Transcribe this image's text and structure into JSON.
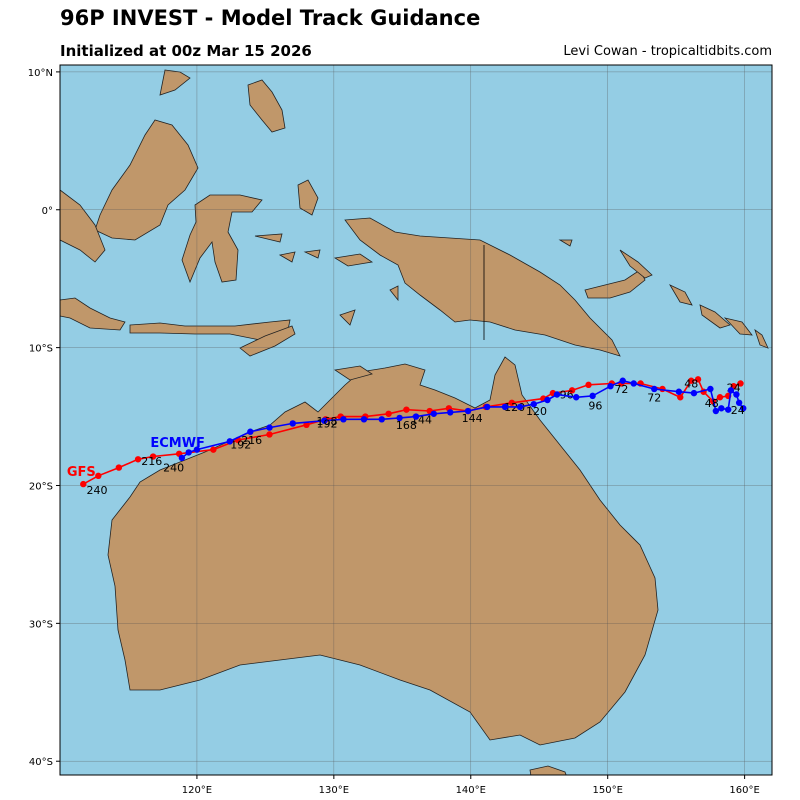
{
  "header": {
    "title": "96P INVEST - Model Track Guidance",
    "subtitle": "Initialized at 00z Mar 15 2026",
    "credit": "Levi Cowan - tropicaltidbits.com"
  },
  "colors": {
    "ocean": "#94cde4",
    "land": "#c0976a",
    "gfs": "#ff0000",
    "ecmwf": "#0000ff",
    "grid": "#555555"
  },
  "chart_data": {
    "type": "map-track",
    "xlim": [
      110,
      162
    ],
    "ylim": [
      -41,
      10.5
    ],
    "lon_ticks": [
      {
        "value": 120,
        "label": "120°E"
      },
      {
        "value": 130,
        "label": "130°E"
      },
      {
        "value": 140,
        "label": "140°E"
      },
      {
        "value": 150,
        "label": "150°E"
      },
      {
        "value": 160,
        "label": "160°E"
      }
    ],
    "lat_ticks": [
      {
        "value": 10,
        "label": "10°N"
      },
      {
        "value": 0,
        "label": "0°"
      },
      {
        "value": -10,
        "label": "10°S"
      },
      {
        "value": -20,
        "label": "20°S"
      },
      {
        "value": -30,
        "label": "30°S"
      },
      {
        "value": -40,
        "label": "40°S"
      }
    ],
    "grid": true,
    "series": [
      {
        "name": "GFS",
        "color": "#ff0000",
        "points": [
          [
            159.7,
            -12.6
          ],
          [
            159.2,
            -12.8
          ],
          [
            158.8,
            -13.5
          ],
          [
            158.2,
            -13.6
          ],
          [
            157.7,
            -13.9
          ],
          [
            157.0,
            -13.2
          ],
          [
            156.6,
            -12.3
          ],
          [
            156.1,
            -12.4
          ],
          [
            155.3,
            -13.6
          ],
          [
            154.0,
            -13.0
          ],
          [
            152.4,
            -12.6
          ],
          [
            151.0,
            -12.6
          ],
          [
            150.3,
            -12.6
          ],
          [
            148.6,
            -12.7
          ],
          [
            147.4,
            -13.1
          ],
          [
            146.0,
            -13.3
          ],
          [
            145.3,
            -13.7
          ],
          [
            143.0,
            -14.0
          ],
          [
            141.1,
            -14.3
          ],
          [
            139.8,
            -14.6
          ],
          [
            138.4,
            -14.4
          ],
          [
            137.0,
            -14.6
          ],
          [
            135.3,
            -14.5
          ],
          [
            134.0,
            -14.8
          ],
          [
            132.3,
            -15.0
          ],
          [
            130.5,
            -15.0
          ],
          [
            129.4,
            -15.2
          ],
          [
            128.0,
            -15.6
          ],
          [
            125.3,
            -16.3
          ],
          [
            123.0,
            -16.7
          ],
          [
            121.2,
            -17.4
          ],
          [
            118.7,
            -17.7
          ],
          [
            116.8,
            -17.9
          ],
          [
            115.7,
            -18.1
          ],
          [
            114.3,
            -18.7
          ],
          [
            112.8,
            -19.3
          ],
          [
            111.7,
            -19.9
          ]
        ],
        "name_label": {
          "text": "GFS",
          "lon": 110.5,
          "lat": -19.3
        },
        "hour_labels": [
          {
            "text": "24",
            "lon": 159.2,
            "lat": -13.2
          },
          {
            "text": "48",
            "lon": 156.1,
            "lat": -12.9
          },
          {
            "text": "72",
            "lon": 151.0,
            "lat": -13.3
          },
          {
            "text": "96",
            "lon": 147.0,
            "lat": -13.7
          },
          {
            "text": "120",
            "lon": 143.2,
            "lat": -14.6
          },
          {
            "text": "144",
            "lon": 136.4,
            "lat": -15.5
          },
          {
            "text": "168",
            "lon": 129.5,
            "lat": -15.6
          },
          {
            "text": "192",
            "lon": 123.2,
            "lat": -17.3
          },
          {
            "text": "216",
            "lon": 116.7,
            "lat": -18.5
          },
          {
            "text": "240",
            "lon": 112.7,
            "lat": -20.6
          }
        ]
      },
      {
        "name": "ECMWF",
        "color": "#0000ff",
        "points": [
          [
            159.9,
            -14.4
          ],
          [
            159.6,
            -14.0
          ],
          [
            159.4,
            -13.4
          ],
          [
            159.0,
            -13.1
          ],
          [
            158.8,
            -14.5
          ],
          [
            158.3,
            -14.4
          ],
          [
            157.9,
            -14.6
          ],
          [
            157.5,
            -13.0
          ],
          [
            156.3,
            -13.3
          ],
          [
            155.2,
            -13.2
          ],
          [
            153.4,
            -13.0
          ],
          [
            151.9,
            -12.6
          ],
          [
            151.1,
            -12.4
          ],
          [
            150.2,
            -12.8
          ],
          [
            148.9,
            -13.5
          ],
          [
            147.7,
            -13.6
          ],
          [
            146.3,
            -13.4
          ],
          [
            145.6,
            -13.8
          ],
          [
            144.6,
            -14.1
          ],
          [
            143.6,
            -14.3
          ],
          [
            142.5,
            -14.3
          ],
          [
            141.2,
            -14.3
          ],
          [
            139.8,
            -14.6
          ],
          [
            138.5,
            -14.7
          ],
          [
            137.3,
            -14.8
          ],
          [
            136.0,
            -15.0
          ],
          [
            134.8,
            -15.1
          ],
          [
            133.5,
            -15.2
          ],
          [
            132.2,
            -15.2
          ],
          [
            130.7,
            -15.2
          ],
          [
            129.3,
            -15.3
          ],
          [
            127.0,
            -15.5
          ],
          [
            125.3,
            -15.8
          ],
          [
            123.9,
            -16.1
          ],
          [
            122.4,
            -16.8
          ],
          [
            120.0,
            -17.4
          ],
          [
            119.4,
            -17.6
          ],
          [
            118.9,
            -18.0
          ]
        ],
        "name_label": {
          "text": "ECMWF",
          "lon": 116.6,
          "lat": -17.2
        },
        "hour_labels": [
          {
            "text": "24",
            "lon": 159.5,
            "lat": -14.8
          },
          {
            "text": "48",
            "lon": 157.6,
            "lat": -14.3
          },
          {
            "text": "72",
            "lon": 153.4,
            "lat": -13.9
          },
          {
            "text": "96",
            "lon": 149.1,
            "lat": -14.5
          },
          {
            "text": "120",
            "lon": 144.8,
            "lat": -14.9
          },
          {
            "text": "144",
            "lon": 140.1,
            "lat": -15.4
          },
          {
            "text": "168",
            "lon": 135.3,
            "lat": -15.9
          },
          {
            "text": "192",
            "lon": 129.5,
            "lat": -15.8
          },
          {
            "text": "216",
            "lon": 124.0,
            "lat": -17.0
          },
          {
            "text": "240",
            "lon": 118.3,
            "lat": -19.0
          }
        ]
      }
    ]
  }
}
